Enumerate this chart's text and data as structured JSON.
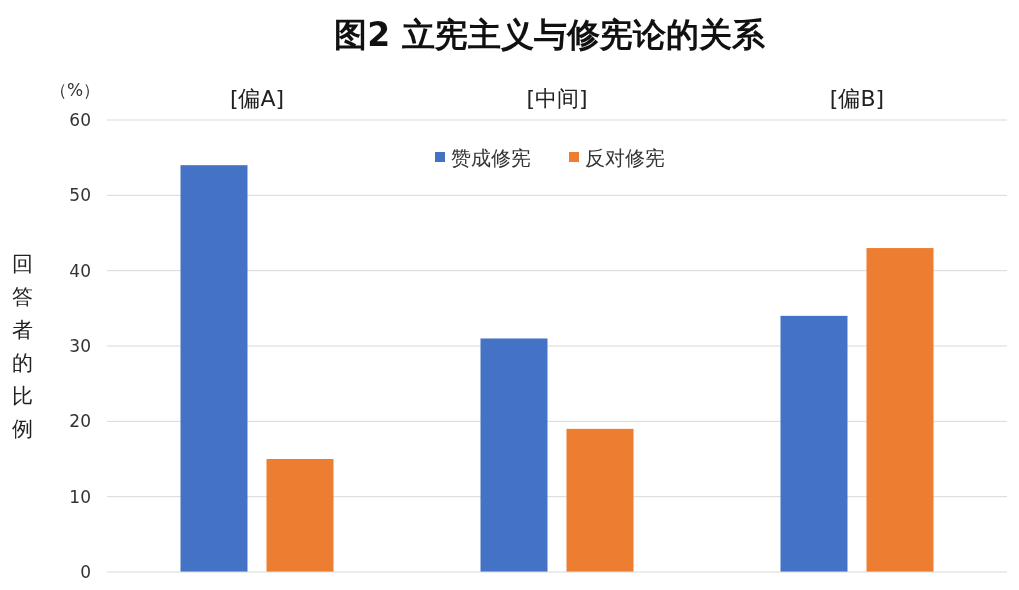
{
  "chart_data": {
    "type": "bar",
    "title": "图2 立宪主义与修宪论的关系",
    "ylabel": "回答者的比例",
    "annotations": [
      "（%）"
    ],
    "categories": [
      "[偏A]",
      "[中间]",
      "[偏B]"
    ],
    "series": [
      {
        "name": "赞成修宪",
        "color": "#4472c4",
        "values": [
          54,
          31,
          34
        ]
      },
      {
        "name": "反对修宪",
        "color": "#ed7d31",
        "values": [
          15,
          19,
          43
        ]
      }
    ],
    "ylim": [
      0,
      60
    ],
    "yticks": [
      0,
      10,
      20,
      30,
      40,
      50,
      60
    ],
    "grid": "y",
    "legend": "top"
  }
}
